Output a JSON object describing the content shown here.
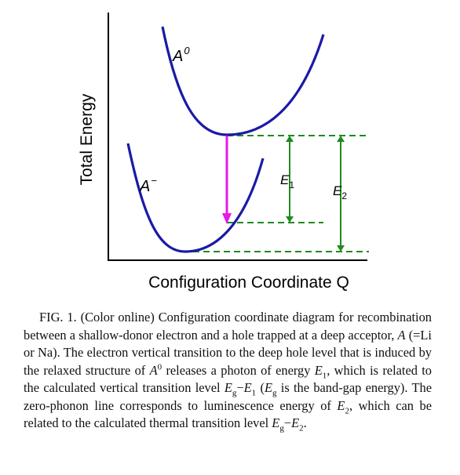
{
  "figure": {
    "axis_y_label": "Total Energy",
    "axis_x_label": "Configuration Coordinate Q",
    "curve_upper": {
      "base": "A",
      "sup": "0"
    },
    "curve_lower": {
      "base": "A",
      "sup": "−"
    },
    "levels": [
      {
        "base": "E",
        "sub": "1"
      },
      {
        "base": "E",
        "sub": "2"
      }
    ],
    "colors": {
      "curves": "#1a1aa6",
      "transition_arrow": "#e619e6",
      "energy_levels": "#1f8a1f",
      "axes": "#000000"
    }
  },
  "caption": {
    "fig_label": "FIG. 1.",
    "s1": " (Color online) Configuration coordinate diagram for recombination between a shallow-donor electron and a hole trapped at a deep acceptor, ",
    "acceptor": "A",
    "s2": " (=Li or Na). The electron vertical transition to the deep hole level that is induced by the relaxed structure of ",
    "a0_base": "A",
    "a0_sup": "0",
    "s3": " releases a photon of energy ",
    "e1_base": "E",
    "e1_sub": "1",
    "s4": ", which is related to the calculated vertical transition level ",
    "eg_base": "E",
    "eg_sub": "g",
    "minus1": "−",
    "e1b_base": "E",
    "e1b_sub": "1",
    "s5": " (",
    "eg2_base": "E",
    "eg2_sub": "g",
    "s6": " is the band-gap energy). The zero-phonon line corresponds to luminescence energy of ",
    "e2_base": "E",
    "e2_sub": "2",
    "s7": ", which can be related to the calculated thermal transition level ",
    "eg3_base": "E",
    "eg3_sub": "g",
    "minus2": "−",
    "e2b_base": "E",
    "e2b_sub": "2",
    "s8": "."
  }
}
